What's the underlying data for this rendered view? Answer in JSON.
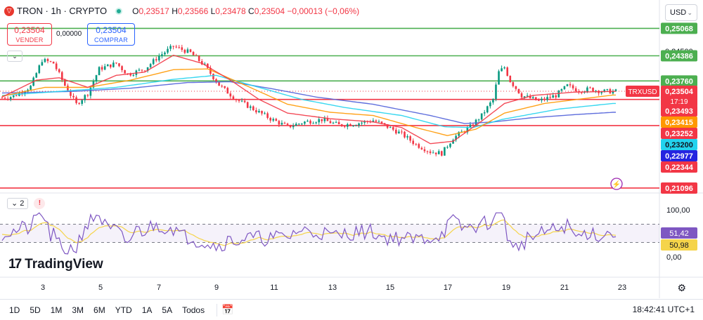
{
  "header": {
    "symbol": "TRON · 1h · CRYPTO",
    "logo_icon": "tron-logo-icon",
    "ohlc": {
      "o_label": "O",
      "o": "0,23517",
      "h_label": "H",
      "h": "0,23566",
      "l_label": "L",
      "l": "0,23478",
      "c_label": "C",
      "c": "0,23504",
      "change": "−0,00013 (−0,06%)"
    }
  },
  "trade": {
    "sell_price": "0,23504",
    "sell_label": "VENDER",
    "spread": "0,00000",
    "buy_price": "0,23504",
    "buy_label": "COMPRAR"
  },
  "currency": "USD",
  "colors": {
    "up": "#089981",
    "down": "#f23645",
    "green_level": "#4caf50",
    "red_level": "#f23645",
    "ema_red": "#f23645",
    "ema_orange": "#ff9800",
    "ema_cyan": "#22d3ee",
    "ema_blue": "#4f5fd9",
    "rsi": "#7e57c2"
  },
  "chart_data": {
    "type": "candlestick",
    "symbol": "TRXUSD",
    "x_tick_labels": [
      "3",
      "5",
      "7",
      "9",
      "11",
      "13",
      "15",
      "17",
      "19",
      "21",
      "23"
    ],
    "price_axis_visible_label": "0,24500",
    "last_price": 0.23504,
    "countdown": "17:19",
    "horizontal_levels": [
      {
        "value": 0.25068,
        "label": "0,25068",
        "color": "#4caf50"
      },
      {
        "value": 0.24386,
        "label": "0,24386",
        "color": "#4caf50"
      },
      {
        "value": 0.2376,
        "label": "0,23760",
        "color": "#4caf50"
      },
      {
        "value": 0.233,
        "label": "",
        "color": "#f23645"
      },
      {
        "value": 0.2265,
        "label": "",
        "color": "#f23645"
      },
      {
        "value": 0.21096,
        "label": "0,21096",
        "color": "#f23645"
      }
    ],
    "axis_badges": [
      {
        "label": "0,23493",
        "color": "#f23645"
      },
      {
        "label": "0,23415",
        "color": "#ff9800"
      },
      {
        "label": "0,23252",
        "color": "#f23645"
      },
      {
        "label": "0,23200",
        "color": "#22d3ee"
      },
      {
        "label": "0,22977",
        "color": "#2424e0"
      },
      {
        "label": "0,22344",
        "color": "#f23645"
      }
    ],
    "price_anchors": [
      [
        0,
        0.2334
      ],
      [
        4,
        0.2338
      ],
      [
        10,
        0.2362
      ],
      [
        14,
        0.2428
      ],
      [
        18,
        0.242
      ],
      [
        22,
        0.2365
      ],
      [
        26,
        0.2318
      ],
      [
        30,
        0.2345
      ],
      [
        34,
        0.2406
      ],
      [
        40,
        0.242
      ],
      [
        44,
        0.2392
      ],
      [
        50,
        0.2406
      ],
      [
        55,
        0.2438
      ],
      [
        60,
        0.2462
      ],
      [
        66,
        0.2446
      ],
      [
        71,
        0.2414
      ],
      [
        76,
        0.2366
      ],
      [
        82,
        0.233
      ],
      [
        88,
        0.2306
      ],
      [
        94,
        0.2282
      ],
      [
        100,
        0.2262
      ],
      [
        106,
        0.2274
      ],
      [
        112,
        0.228
      ],
      [
        118,
        0.2266
      ],
      [
        124,
        0.227
      ],
      [
        130,
        0.2278
      ],
      [
        135,
        0.2262
      ],
      [
        140,
        0.2244
      ],
      [
        145,
        0.2218
      ],
      [
        150,
        0.22
      ],
      [
        154,
        0.2196
      ],
      [
        158,
        0.2234
      ],
      [
        164,
        0.2262
      ],
      [
        168,
        0.229
      ],
      [
        172,
        0.233
      ],
      [
        174,
        0.2398
      ],
      [
        176,
        0.241
      ],
      [
        178,
        0.2376
      ],
      [
        182,
        0.234
      ],
      [
        188,
        0.2326
      ],
      [
        194,
        0.234
      ],
      [
        198,
        0.2364
      ],
      [
        202,
        0.2352
      ],
      [
        206,
        0.2356
      ],
      [
        210,
        0.235
      ],
      [
        214,
        0.235
      ]
    ],
    "ema_anchors": {
      "red": [
        [
          0,
          0.2336
        ],
        [
          12,
          0.2378
        ],
        [
          20,
          0.2384
        ],
        [
          30,
          0.236
        ],
        [
          40,
          0.239
        ],
        [
          50,
          0.2398
        ],
        [
          60,
          0.244
        ],
        [
          70,
          0.242
        ],
        [
          80,
          0.2378
        ],
        [
          90,
          0.233
        ],
        [
          100,
          0.2296
        ],
        [
          115,
          0.2282
        ],
        [
          130,
          0.2274
        ],
        [
          140,
          0.226
        ],
        [
          150,
          0.222
        ],
        [
          158,
          0.2226
        ],
        [
          168,
          0.2276
        ],
        [
          176,
          0.232
        ],
        [
          186,
          0.234
        ],
        [
          200,
          0.2348
        ],
        [
          214,
          0.235
        ]
      ],
      "orange": [
        [
          0,
          0.2338
        ],
        [
          15,
          0.236
        ],
        [
          30,
          0.236
        ],
        [
          45,
          0.2378
        ],
        [
          60,
          0.2404
        ],
        [
          72,
          0.2406
        ],
        [
          85,
          0.2366
        ],
        [
          100,
          0.2318
        ],
        [
          115,
          0.2298
        ],
        [
          130,
          0.229
        ],
        [
          145,
          0.226
        ],
        [
          156,
          0.224
        ],
        [
          166,
          0.2256
        ],
        [
          176,
          0.2296
        ],
        [
          190,
          0.232
        ],
        [
          214,
          0.2341
        ]
      ],
      "cyan": [
        [
          0,
          0.234
        ],
        [
          20,
          0.235
        ],
        [
          40,
          0.236
        ],
        [
          60,
          0.238
        ],
        [
          75,
          0.239
        ],
        [
          90,
          0.236
        ],
        [
          105,
          0.233
        ],
        [
          120,
          0.231
        ],
        [
          140,
          0.229
        ],
        [
          155,
          0.2262
        ],
        [
          165,
          0.226
        ],
        [
          175,
          0.228
        ],
        [
          195,
          0.2306
        ],
        [
          214,
          0.232
        ]
      ],
      "blue": [
        [
          0,
          0.2346
        ],
        [
          25,
          0.235
        ],
        [
          45,
          0.2358
        ],
        [
          65,
          0.2372
        ],
        [
          80,
          0.2374
        ],
        [
          95,
          0.2356
        ],
        [
          110,
          0.2336
        ],
        [
          130,
          0.2318
        ],
        [
          150,
          0.229
        ],
        [
          162,
          0.227
        ],
        [
          172,
          0.2274
        ],
        [
          185,
          0.2284
        ],
        [
          200,
          0.2292
        ],
        [
          214,
          0.2298
        ]
      ]
    },
    "rsi": {
      "length_label": "2",
      "axis_labels": [
        "100,00",
        "0,00"
      ],
      "value": "51,42",
      "ma_value": "50,98",
      "upper_band": 70,
      "lower_band": 30
    }
  },
  "rsi_header": {
    "length": "2",
    "alert": "!"
  },
  "logo_text": "TradingView",
  "bottom_bar": {
    "ranges": [
      "1D",
      "5D",
      "1M",
      "3M",
      "6M",
      "YTD",
      "1A",
      "5A",
      "Todos"
    ],
    "time": "18:42:41 UTC+1"
  }
}
